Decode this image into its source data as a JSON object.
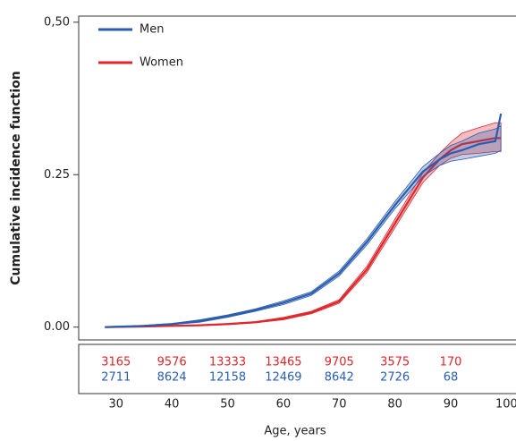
{
  "chart_data": {
    "type": "line",
    "y_label": "Cumulative incidence function",
    "x_label": "Age, years",
    "x": [
      28,
      35,
      40,
      45,
      50,
      55,
      60,
      65,
      70,
      75,
      80,
      85,
      88,
      90,
      92,
      95,
      98,
      99
    ],
    "series": [
      {
        "name": "Men",
        "color": "#2a5db0",
        "values": [
          0,
          0.002,
          0.005,
          0.01,
          0.018,
          0.028,
          0.04,
          0.055,
          0.088,
          0.14,
          0.2,
          0.255,
          0.275,
          0.285,
          0.29,
          0.3,
          0.305,
          0.35
        ],
        "lower": [
          0,
          0.001,
          0.004,
          0.008,
          0.016,
          0.026,
          0.037,
          0.052,
          0.084,
          0.135,
          0.194,
          0.247,
          0.265,
          0.272,
          0.275,
          0.28,
          0.285,
          0.29
        ],
        "upper": [
          0,
          0.003,
          0.006,
          0.012,
          0.02,
          0.03,
          0.043,
          0.058,
          0.092,
          0.145,
          0.206,
          0.263,
          0.285,
          0.298,
          0.305,
          0.318,
          0.325,
          0.33
        ],
        "at_risk": [
          2711,
          8624,
          12158,
          12469,
          8642,
          2726,
          68
        ]
      },
      {
        "name": "Women",
        "color": "#e0262d",
        "values": [
          0,
          0.001,
          0.002,
          0.003,
          0.005,
          0.008,
          0.014,
          0.024,
          0.042,
          0.095,
          0.17,
          0.245,
          0.275,
          0.29,
          0.3,
          0.305,
          0.31,
          0.31
        ],
        "lower": [
          0,
          0.0005,
          0.0015,
          0.0025,
          0.004,
          0.007,
          0.012,
          0.022,
          0.039,
          0.09,
          0.163,
          0.237,
          0.265,
          0.277,
          0.283,
          0.285,
          0.288,
          0.288
        ],
        "upper": [
          0,
          0.0015,
          0.0025,
          0.0035,
          0.006,
          0.009,
          0.016,
          0.026,
          0.045,
          0.1,
          0.177,
          0.253,
          0.285,
          0.303,
          0.318,
          0.327,
          0.335,
          0.335
        ],
        "at_risk": [
          3165,
          9576,
          13333,
          13465,
          9705,
          3575,
          170
        ]
      }
    ],
    "xlim": [
      23.3,
      101.7
    ],
    "ylim": [
      -0.021,
      0.51
    ],
    "xticks": [
      30,
      40,
      50,
      60,
      70,
      80,
      90,
      100
    ],
    "yticks": [
      {
        "value": 0,
        "label": "0.00"
      },
      {
        "value": 0.25,
        "label": "0.25"
      },
      {
        "value": 0.5,
        "label": "0,50"
      }
    ],
    "legend": "upper left"
  }
}
